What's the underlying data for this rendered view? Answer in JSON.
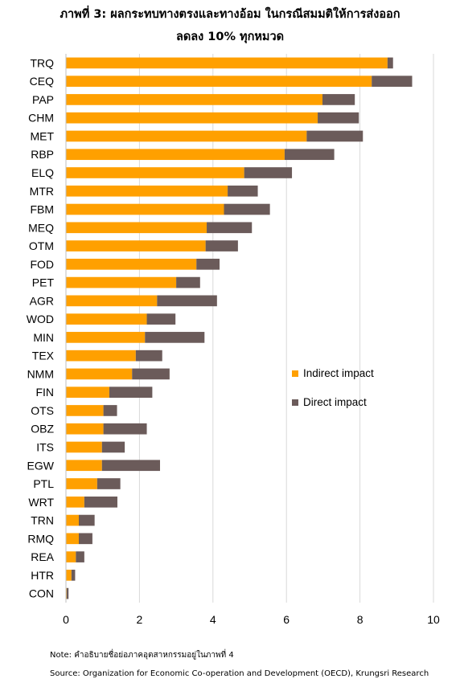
{
  "title_line1": "ภาพที่ 3: ผลกระทบทางตรงและทางอ้อม ในกรณีสมมติให้การส่งออก",
  "title_line2": "ลดลง 10% ทุกหมวด",
  "note": "Note: คำอธิบายชื่อย่อภาคอุตสาหกรรมอยู่ในภาพที่ 4",
  "source": "Source: Organization for Economic Co-operation and Development (OECD), Krungsri Research",
  "colors": {
    "indirect": "#FFA000",
    "direct": "#6B5B5A",
    "grid": "#D9D9D9"
  },
  "chart_data": {
    "type": "bar",
    "orientation": "horizontal",
    "stacked": true,
    "categories": [
      "TRQ",
      "CEQ",
      "PAP",
      "CHM",
      "MET",
      "RBP",
      "ELQ",
      "MTR",
      "FBM",
      "MEQ",
      "OTM",
      "FOD",
      "PET",
      "AGR",
      "WOD",
      "MIN",
      "TEX",
      "NMM",
      "FIN",
      "OTS",
      "OBZ",
      "ITS",
      "EGW",
      "PTL",
      "WRT",
      "TRN",
      "RMQ",
      "REA",
      "HTR",
      "CON"
    ],
    "series": [
      {
        "name": "Indirect impact",
        "values": [
          8.75,
          8.32,
          6.98,
          6.85,
          6.55,
          5.95,
          4.85,
          4.4,
          4.3,
          3.83,
          3.8,
          3.55,
          3.0,
          2.48,
          2.2,
          2.15,
          1.9,
          1.8,
          1.18,
          1.02,
          1.02,
          0.98,
          0.98,
          0.85,
          0.5,
          0.35,
          0.35,
          0.27,
          0.15,
          0.02
        ]
      },
      {
        "name": "Direct impact",
        "values": [
          0.15,
          1.1,
          0.88,
          1.12,
          1.53,
          1.35,
          1.3,
          0.82,
          1.25,
          1.23,
          0.88,
          0.63,
          0.65,
          1.63,
          0.78,
          1.62,
          0.72,
          1.02,
          1.17,
          0.37,
          1.18,
          0.62,
          1.58,
          0.63,
          0.9,
          0.43,
          0.37,
          0.23,
          0.1,
          0.05
        ]
      }
    ],
    "xlim": [
      0,
      10
    ],
    "xticks": [
      "0",
      "2",
      "4",
      "6",
      "8",
      "10"
    ],
    "grid": true,
    "legend_position": "right"
  }
}
